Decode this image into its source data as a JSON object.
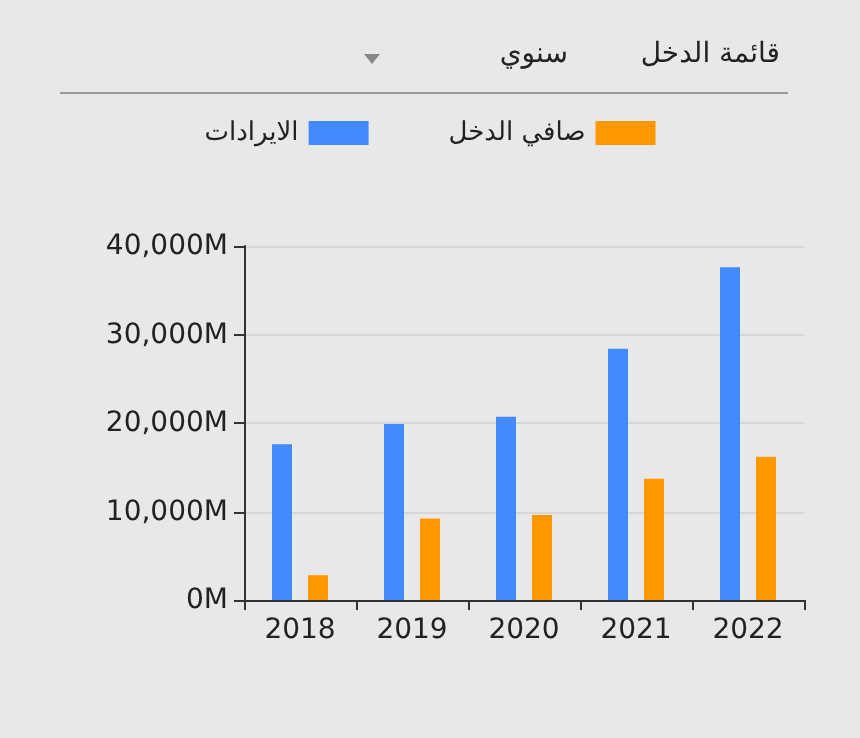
{
  "chart_data": {
    "type": "bar",
    "title": "قائمة الدخل",
    "annotations": [
      "سنوي"
    ],
    "categories": [
      "2018",
      "2019",
      "2020",
      "2021",
      "2022"
    ],
    "series": [
      {
        "name": "الايرادات",
        "color": "#448aff",
        "values": [
          17600,
          19900,
          20700,
          28400,
          37600
        ]
      },
      {
        "name": "صافي الدخل",
        "color": "#ff9800",
        "values": [
          2800,
          9200,
          9600,
          13700,
          16200
        ]
      }
    ],
    "ylim": [
      0,
      40000
    ],
    "yticks": [
      {
        "value": 0,
        "label": "0M"
      },
      {
        "value": 10000,
        "label": "10,000M"
      },
      {
        "value": 20000,
        "label": "20,000M"
      },
      {
        "value": 30000,
        "label": "30,000M"
      },
      {
        "value": 40000,
        "label": "40,000M"
      }
    ],
    "grid": "y",
    "legend": "top"
  }
}
